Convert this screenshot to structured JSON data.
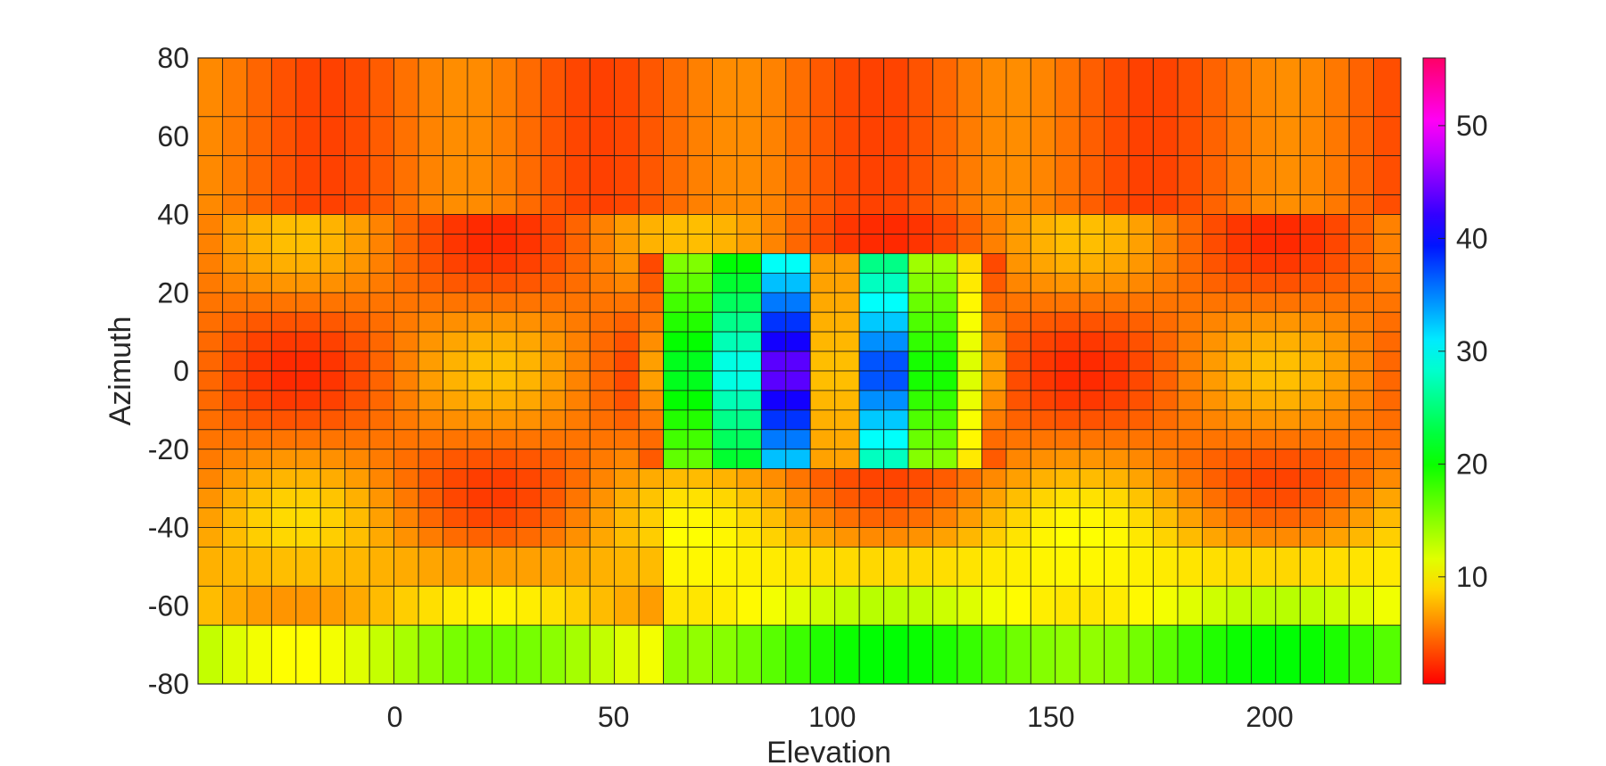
{
  "chart_data": {
    "type": "heatmap",
    "title": "",
    "xlabel": "Elevation",
    "ylabel": "Azimuth",
    "xlim": [
      -45,
      230
    ],
    "ylim": [
      -80,
      80
    ],
    "xticks": [
      "0",
      "50",
      "100",
      "150",
      "200"
    ],
    "xtick_values": [
      0,
      50,
      100,
      150,
      200
    ],
    "yticks": [
      "80",
      "60",
      "40",
      "20",
      "0",
      "-20",
      "-40",
      "-60",
      "-80"
    ],
    "ytick_values": [
      80,
      60,
      40,
      20,
      0,
      -20,
      -40,
      -60,
      -80
    ],
    "colorbar": {
      "range": [
        0.5,
        56
      ],
      "ticks": [
        "50",
        "40",
        "30",
        "20",
        "10"
      ],
      "tick_values": [
        50,
        40,
        30,
        20,
        10
      ],
      "colormap": "hsv"
    },
    "x_edges": [
      -45,
      -39.4,
      -33.8,
      -28.2,
      -22.6,
      -17,
      -11.4,
      -5.8,
      -0.2,
      5.4,
      11,
      16.6,
      22.2,
      27.8,
      33.4,
      39,
      44.6,
      50.2,
      55.8,
      61.4,
      67,
      72.6,
      78.2,
      83.8,
      89.4,
      95,
      100.6,
      106.2,
      111.8,
      117.4,
      123,
      128.6,
      134.2,
      139.8,
      145.4,
      151,
      156.6,
      162.2,
      167.8,
      173.4,
      179,
      184.6,
      190.2,
      195.8,
      201.4,
      207,
      212.6,
      218.2,
      223.8,
      230
    ],
    "y_edges": [
      80,
      65,
      55,
      45,
      40,
      35,
      30,
      25,
      20,
      15,
      10,
      5,
      0,
      -5,
      -10,
      -15,
      -20,
      -25,
      -30,
      -35,
      -40,
      -45,
      -55,
      -65,
      -80
    ],
    "grid": true,
    "legend": "none"
  }
}
